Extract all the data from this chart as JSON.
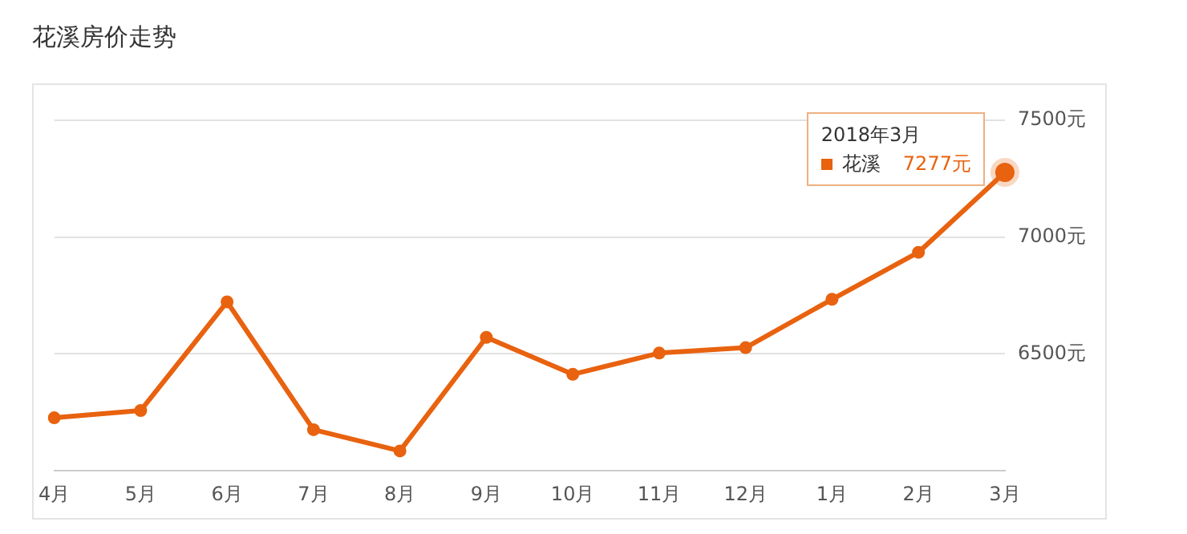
{
  "chart_data": {
    "type": "line",
    "title": "花溪房价走势",
    "categories": [
      "4月",
      "5月",
      "6月",
      "7月",
      "8月",
      "9月",
      "10月",
      "11月",
      "12月",
      "1月",
      "2月",
      "3月"
    ],
    "series": [
      {
        "name": "花溪",
        "color": "#e8620f",
        "values": [
          6227,
          6258,
          6723,
          6176,
          6085,
          6571,
          6413,
          6504,
          6527,
          6734,
          6935,
          7277
        ],
        "value_labels": [
          null,
          null,
          null,
          null,
          null,
          null,
          null,
          null,
          null,
          null,
          null,
          "7277元"
        ]
      }
    ],
    "annotations": [
      "2018年3月"
    ],
    "ylim": [
      6000,
      7500
    ],
    "yticks": [
      {
        "value": 6500,
        "label": "6500元"
      },
      {
        "value": 7000,
        "label": "7000元"
      },
      {
        "value": 7500,
        "label": "7500元"
      }
    ],
    "grid": "y",
    "legend": "top right",
    "marker": "circle",
    "line_style": "solid"
  }
}
